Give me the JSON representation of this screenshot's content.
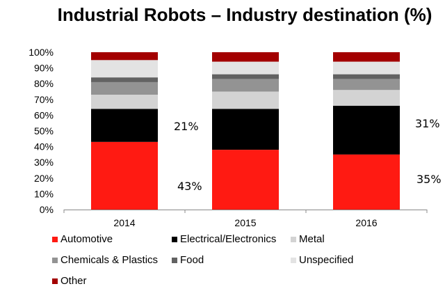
{
  "chart_data": {
    "type": "bar",
    "stacked": true,
    "title": "Industrial Robots – Industry destination (%)",
    "xlabel": "",
    "ylabel": "",
    "ylim": [
      0,
      100
    ],
    "yticks": [
      "0%",
      "10%",
      "20%",
      "30%",
      "40%",
      "50%",
      "60%",
      "70%",
      "80%",
      "90%",
      "100%"
    ],
    "categories": [
      "2014",
      "2015",
      "2016"
    ],
    "series": [
      {
        "name": "Automotive",
        "color": "#ff1a12",
        "values": [
          43,
          38,
          35
        ]
      },
      {
        "name": "Electrical/Electronics",
        "color": "#000000",
        "values": [
          21,
          26,
          31
        ]
      },
      {
        "name": "Metal",
        "color": "#d3d3d3",
        "values": [
          9,
          11,
          10
        ]
      },
      {
        "name": "Chemicals & Plastics",
        "color": "#939393",
        "values": [
          8,
          8,
          7
        ]
      },
      {
        "name": "Food",
        "color": "#626262",
        "values": [
          3,
          3,
          3
        ]
      },
      {
        "name": "Unspecified",
        "color": "#e3e3e3",
        "values": [
          11,
          8,
          8
        ]
      },
      {
        "name": "Other",
        "color": "#a30000",
        "values": [
          5,
          6,
          6
        ]
      }
    ],
    "annotations": [
      "21%",
      "43%",
      "31%",
      "35%"
    ],
    "legend": "bottom",
    "grid": false
  }
}
